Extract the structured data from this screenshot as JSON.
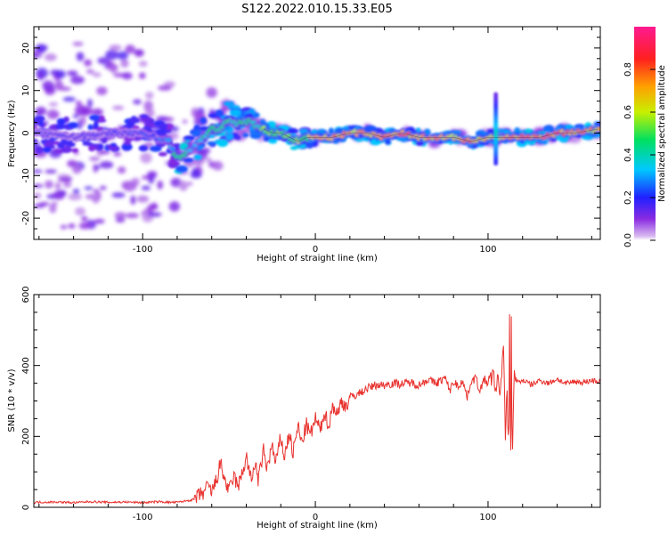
{
  "figure": {
    "title": "S122.2022.010.15.33.E05"
  },
  "chart_data": [
    {
      "type": "heatmap",
      "xlabel": "Height of straight line (km)",
      "ylabel": "Frequency (Hz)",
      "xlim": [
        -163,
        165
      ],
      "ylim": [
        -25,
        25
      ],
      "xticks": [
        -100,
        0,
        100
      ],
      "yticks": [
        -20,
        -10,
        0,
        10,
        20
      ],
      "colorbar": {
        "label": "Normalized spectral amplitude",
        "range": [
          0.0,
          1.0
        ],
        "ticks": [
          0.0,
          0.2,
          0.4,
          0.6,
          0.8
        ],
        "colormap": "rainbow: white-violet-blue-cyan-green-yellow-orange-red-magenta"
      },
      "ridge": {
        "x": [
          -163,
          -140,
          -120,
          -100,
          -85,
          -80,
          -75,
          -70,
          -65,
          -60,
          -55,
          -50,
          -45,
          -40,
          -35,
          -30,
          -25,
          -20,
          -15,
          -10,
          -5,
          0,
          10,
          20,
          30,
          40,
          50,
          60,
          70,
          80,
          90,
          100,
          105,
          110,
          120,
          130,
          140,
          150,
          165
        ],
        "freq_hz": [
          0,
          -1,
          0,
          0,
          -2,
          -6,
          -5,
          -3,
          -1,
          1,
          1,
          3,
          2,
          3,
          2,
          1,
          0,
          0,
          -1,
          -2,
          -1,
          -1,
          -1,
          0,
          0,
          -1,
          0,
          -1,
          -1,
          -1,
          -2,
          -1,
          -1,
          -1,
          -1,
          -1,
          0,
          0,
          1
        ],
        "intensity": [
          0.2,
          0.2,
          0.2,
          0.25,
          0.3,
          0.5,
          0.5,
          0.35,
          0.45,
          0.5,
          0.5,
          0.5,
          0.45,
          0.5,
          0.45,
          0.55,
          0.55,
          0.6,
          0.55,
          0.6,
          0.6,
          0.75,
          0.8,
          0.8,
          0.75,
          0.8,
          0.85,
          0.75,
          0.8,
          0.75,
          0.8,
          0.75,
          0.7,
          0.8,
          0.85,
          0.85,
          0.9,
          0.8,
          0.7
        ],
        "spread_hz": [
          22,
          22,
          22,
          20,
          18,
          10,
          8,
          8,
          8,
          9,
          9,
          6,
          5,
          4,
          3,
          2,
          2,
          2,
          2,
          2,
          2,
          1.5,
          1.5,
          1.5,
          1.5,
          1.5,
          1.5,
          1.5,
          1.5,
          1.5,
          1.5,
          1.5,
          1.5,
          1.5,
          1.5,
          1.5,
          1.5,
          1.5,
          1.5
        ]
      }
    },
    {
      "type": "line",
      "xlabel": "Height of straight line (km)",
      "ylabel": "SNR (10 * v/v)",
      "xlim": [
        -163,
        165
      ],
      "ylim": [
        0,
        600
      ],
      "xticks": [
        -100,
        0,
        100
      ],
      "yticks": [
        0,
        200,
        400,
        600
      ],
      "color": "#e8322e",
      "series": [
        {
          "x": [
            -163,
            -150,
            -140,
            -130,
            -120,
            -110,
            -100,
            -90,
            -85,
            -80,
            -75,
            -70,
            -67,
            -65,
            -62,
            -60,
            -57,
            -55,
            -52,
            -50,
            -47,
            -45,
            -42,
            -40,
            -37,
            -35,
            -33,
            -30,
            -28,
            -25,
            -23,
            -20,
            -18,
            -15,
            -13,
            -10,
            -8,
            -5,
            -3,
            0,
            3,
            5,
            8,
            10,
            13,
            15,
            18,
            20,
            25,
            30,
            35,
            40,
            45,
            50,
            55,
            60,
            65,
            70,
            75,
            78,
            80,
            83,
            85,
            88,
            90,
            93,
            95,
            98,
            100,
            103,
            105,
            106,
            107,
            108,
            109,
            110,
            111,
            112,
            112.5,
            113,
            113.5,
            114,
            115,
            118,
            120,
            125,
            130,
            135,
            140,
            145,
            150,
            155,
            160,
            165
          ],
          "snr": [
            14,
            15,
            13,
            16,
            14,
            15,
            13,
            16,
            14,
            14,
            18,
            22,
            35,
            40,
            60,
            42,
            80,
            125,
            70,
            45,
            90,
            55,
            100,
            145,
            70,
            130,
            75,
            160,
            110,
            175,
            120,
            200,
            140,
            210,
            150,
            230,
            180,
            235,
            200,
            250,
            215,
            270,
            230,
            290,
            260,
            300,
            285,
            310,
            320,
            335,
            345,
            345,
            350,
            348,
            352,
            345,
            360,
            350,
            365,
            330,
            355,
            340,
            360,
            310,
            355,
            365,
            330,
            360,
            350,
            370,
            330,
            380,
            300,
            400,
            460,
            180,
            330,
            140,
            600,
            40,
            520,
            120,
            370,
            350,
            360,
            345,
            358,
            350,
            362,
            348,
            355,
            352,
            358,
            355
          ]
        }
      ]
    }
  ]
}
